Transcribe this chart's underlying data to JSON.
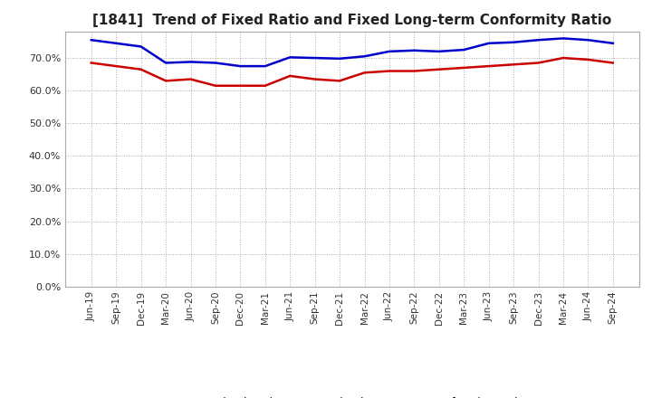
{
  "title": "[1841]  Trend of Fixed Ratio and Fixed Long-term Conformity Ratio",
  "x_labels": [
    "Jun-19",
    "Sep-19",
    "Dec-19",
    "Mar-20",
    "Jun-20",
    "Sep-20",
    "Dec-20",
    "Mar-21",
    "Jun-21",
    "Sep-21",
    "Dec-21",
    "Mar-22",
    "Jun-22",
    "Sep-22",
    "Dec-22",
    "Mar-23",
    "Jun-23",
    "Sep-23",
    "Dec-23",
    "Mar-24",
    "Jun-24",
    "Sep-24"
  ],
  "fixed_ratio": [
    75.5,
    74.5,
    73.5,
    68.5,
    68.8,
    68.5,
    67.5,
    67.5,
    70.2,
    70.0,
    69.8,
    70.5,
    72.0,
    72.3,
    72.0,
    72.5,
    74.5,
    74.8,
    75.5,
    76.0,
    75.5,
    74.5
  ],
  "fixed_lt_ratio": [
    68.5,
    67.5,
    66.5,
    63.0,
    63.5,
    61.5,
    61.5,
    61.5,
    64.5,
    63.5,
    63.0,
    65.5,
    66.0,
    66.0,
    66.5,
    67.0,
    67.5,
    68.0,
    68.5,
    70.0,
    69.5,
    68.5
  ],
  "fixed_ratio_color": "#0000cc",
  "fixed_lt_ratio_color": "#cc0000",
  "background_color": "#ffffff",
  "plot_bg_color": "#ffffff",
  "grid_color": "#aaaaaa",
  "border_color": "#aaaaaa",
  "ylim": [
    0,
    78
  ],
  "yticks": [
    0,
    10,
    20,
    30,
    40,
    50,
    60,
    70
  ],
  "title_fontsize": 11,
  "legend_labels": [
    "Fixed Ratio",
    "Fixed Long-term Conformity Ratio"
  ],
  "line_width": 1.8
}
